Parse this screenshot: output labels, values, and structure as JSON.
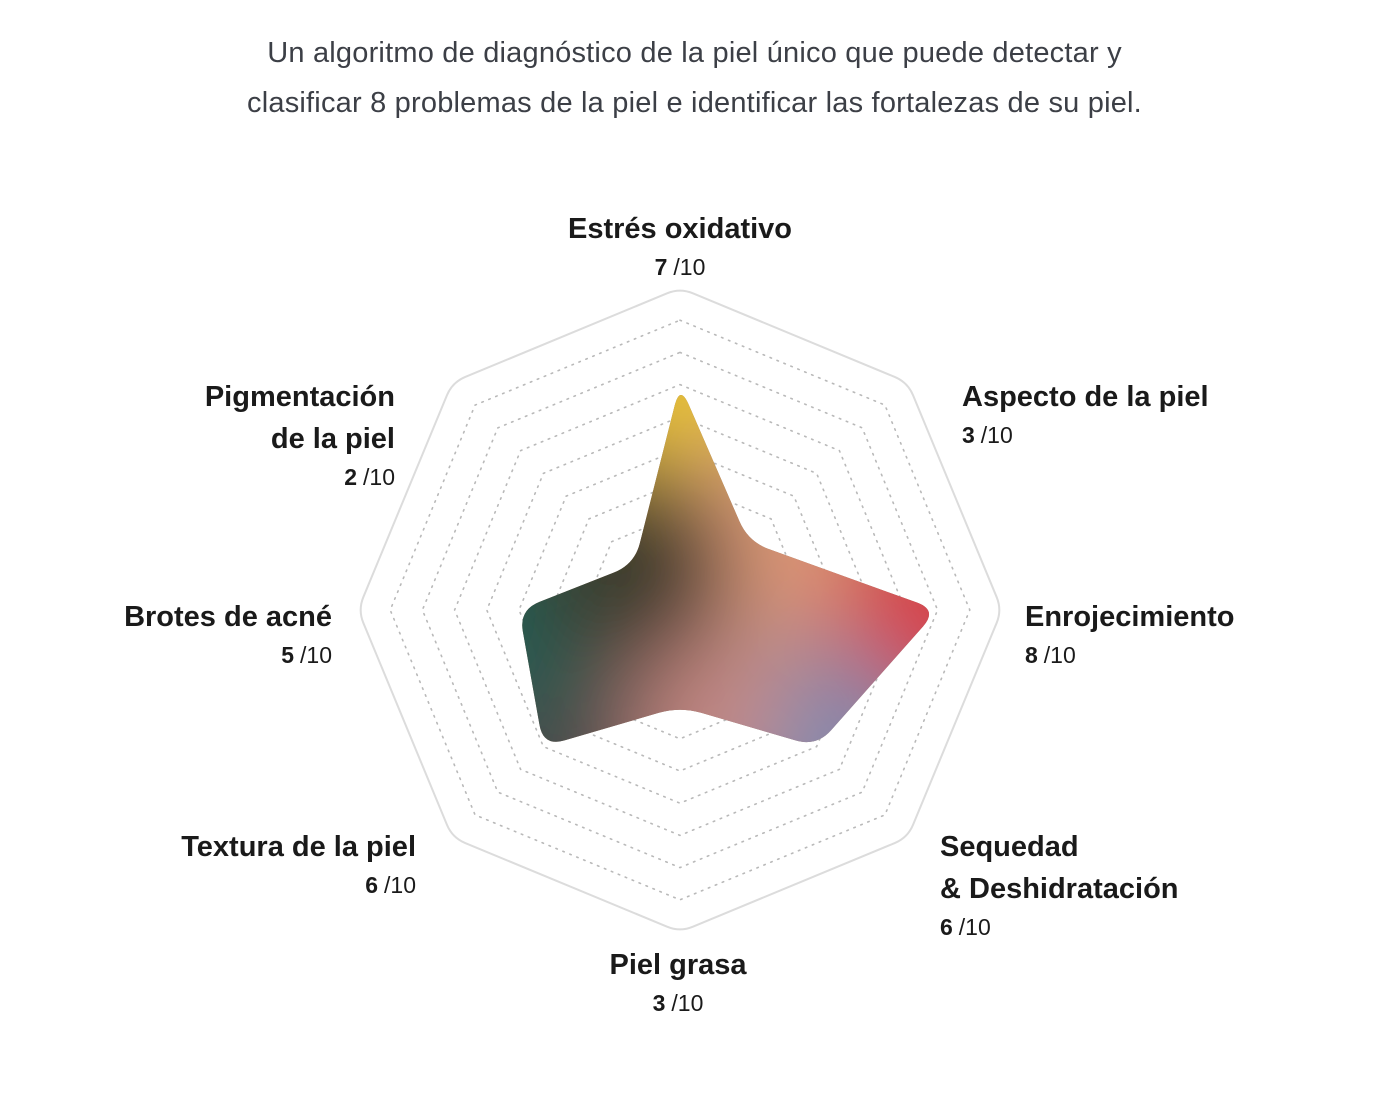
{
  "intro": {
    "line1": "Un algoritmo de diagnóstico de la piel único que puede detectar y",
    "line2": "clasificar 8 problemas de la piel e identificar las fortalezas de su piel."
  },
  "chart_data": {
    "type": "radar",
    "max": 10,
    "rings": 10,
    "axes": [
      {
        "name_lines": [
          "Estrés oxidativo"
        ],
        "value": 7,
        "suffix": "/10",
        "color": "#e8c231"
      },
      {
        "name_lines": [
          "Aspecto de la piel"
        ],
        "value": 3,
        "suffix": "/10",
        "color": "#e5a07e"
      },
      {
        "name_lines": [
          "Enrojecimiento"
        ],
        "value": 8,
        "suffix": "/10",
        "color": "#d84146"
      },
      {
        "name_lines": [
          "Sequedad",
          "& Deshidratación"
        ],
        "value": 6,
        "suffix": "/10",
        "color": "#7f8ab0"
      },
      {
        "name_lines": [
          "Piel grasa"
        ],
        "value": 3,
        "suffix": "/10",
        "color": "#c98a84"
      },
      {
        "name_lines": [
          "Textura de la piel"
        ],
        "value": 6,
        "suffix": "/10",
        "color": "#4a4a48"
      },
      {
        "name_lines": [
          "Brotes de acné"
        ],
        "value": 5,
        "suffix": "/10",
        "color": "#1f5e55"
      },
      {
        "name_lines": [
          "Pigmentación",
          "de la piel"
        ],
        "value": 2,
        "suffix": "/10",
        "color": "#3b3a2a"
      }
    ],
    "colors": {
      "outline": "#dcdcdc",
      "ring_dots": "#b9b9b9"
    }
  }
}
